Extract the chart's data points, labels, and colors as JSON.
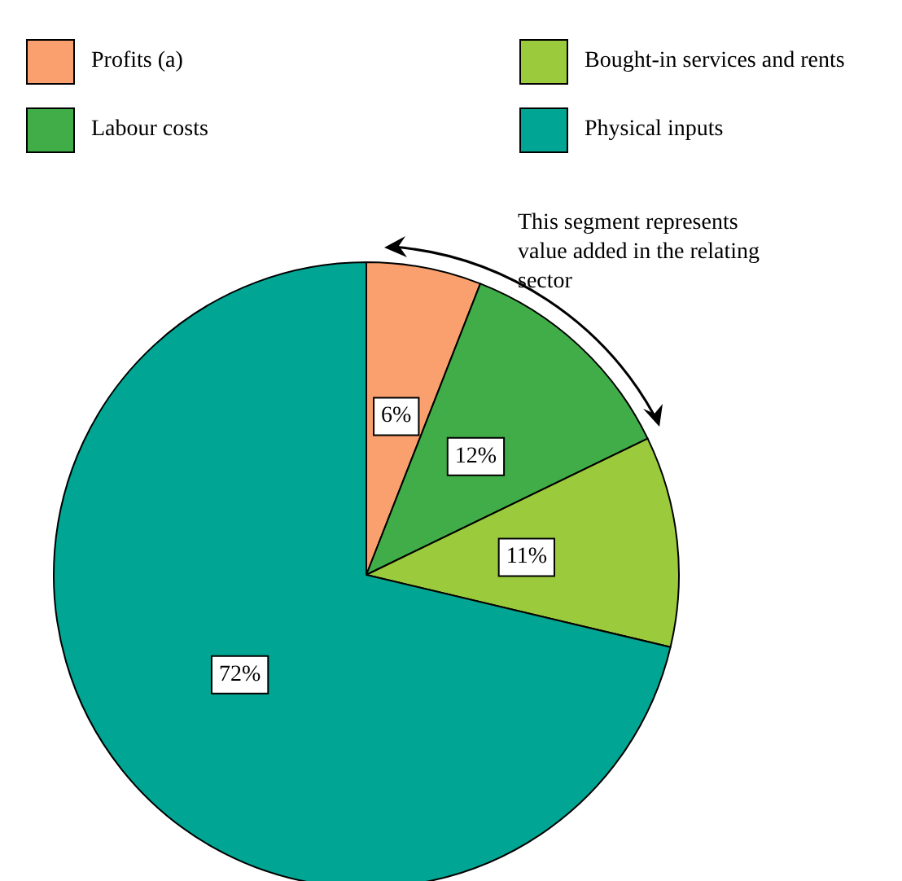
{
  "chart_data": {
    "type": "pie",
    "categories": [
      "Profits (a)",
      "Labour costs",
      "Bought-in services and rents",
      "Physical inputs"
    ],
    "values": [
      6,
      12,
      11,
      72
    ],
    "colors": [
      "#f9a06e",
      "#41ad49",
      "#9bcb3c",
      "#00a693"
    ],
    "value_labels": [
      "6%",
      "12%",
      "11%",
      "72%"
    ],
    "legend": "top",
    "annotations": [
      "This segment represents value added in the relating sector"
    ]
  }
}
